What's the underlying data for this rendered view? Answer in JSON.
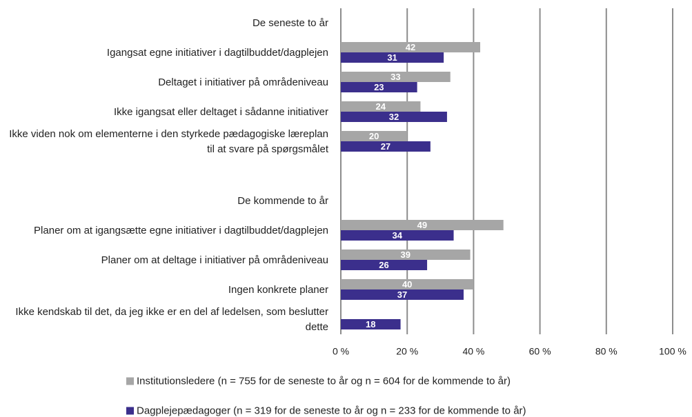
{
  "chart_data": {
    "type": "hbar",
    "categories": [
      "De seneste to år",
      "Igangsat egne initiativer i dagtilbuddet/dagplejen",
      "Deltaget i initiativer på områdeniveau",
      "Ikke igangsat eller deltaget i sådanne initiativer",
      "Ikke viden nok om elementerne i den styrkede pædagogiske læreplan til at svare på spørgsmålet",
      null,
      "De kommende to år",
      "Planer om at igangsætte egne initiativer i dagtilbuddet/dagplejen",
      "Planer om at deltage i initiativer på områdeniveau",
      "Ingen konkrete planer",
      "Ikke kendskab til det, da jeg ikke er en del af ledelsen, som beslutter dette"
    ],
    "series": [
      {
        "name": "Institutionsledere (n = 755 for de seneste to år og n = 604 for de kommende to år)",
        "color": "#a6a6a6",
        "values": [
          null,
          42,
          33,
          24,
          20,
          null,
          null,
          49,
          39,
          40,
          null
        ]
      },
      {
        "name": "Dagplejepædagoger (n = 319 for de seneste to år og n = 233 for de kommende to år)",
        "color": "#3b2f8c",
        "values": [
          null,
          31,
          23,
          32,
          27,
          null,
          null,
          34,
          26,
          37,
          18
        ]
      }
    ],
    "xlim": [
      0,
      100
    ],
    "xticks": [
      {
        "value": 0,
        "label": "0 %"
      },
      {
        "value": 20,
        "label": "20 %"
      },
      {
        "value": 40,
        "label": "40 %"
      },
      {
        "value": 60,
        "label": "60 %"
      },
      {
        "value": 80,
        "label": "80 %"
      },
      {
        "value": 100,
        "label": "100 %"
      }
    ],
    "grid": true
  }
}
